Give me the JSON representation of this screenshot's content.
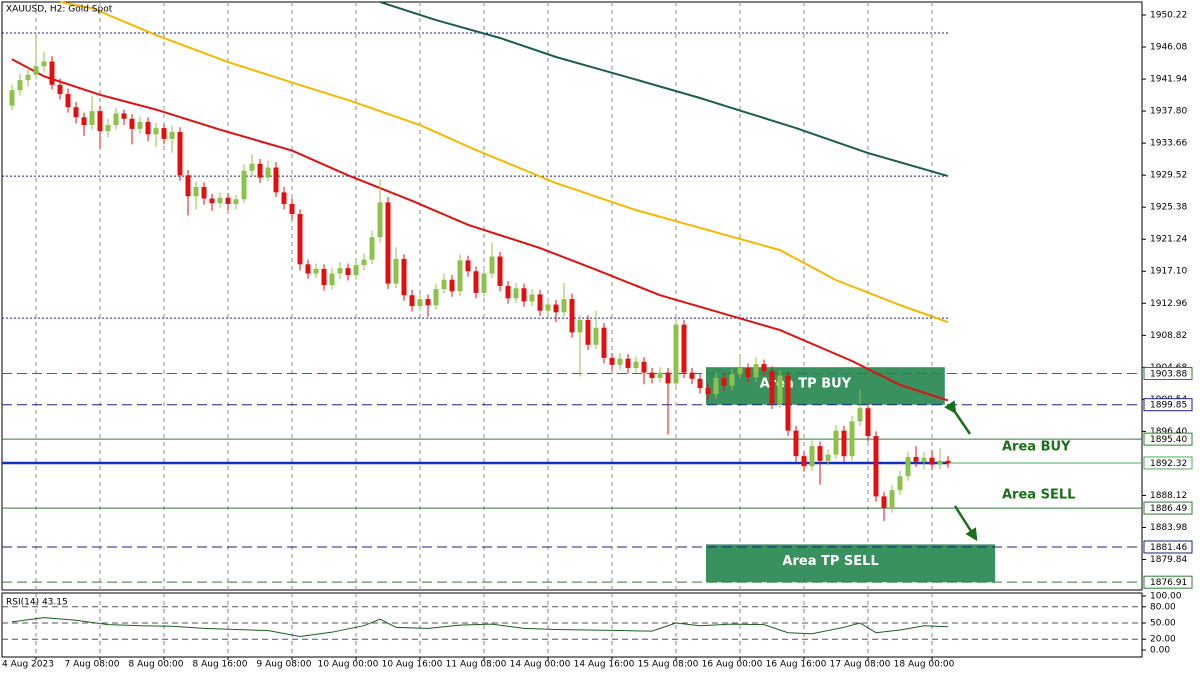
{
  "chart_data": {
    "type": "candlestick",
    "title": "XAUUSD, H2:  Gold Spot",
    "up_color": "#8bc34a",
    "down_color": "#e01010",
    "xlim": [
      -1.25,
      141.25
    ],
    "ylim": [
      1875.9,
      1951.9
    ],
    "grid": "x",
    "xticks": [
      {
        "value": 3,
        "label": "4 Aug 2023"
      },
      {
        "value": 11,
        "label": "7 Aug 08:00"
      },
      {
        "value": 19,
        "label": "8 Aug 00:00"
      },
      {
        "value": 27,
        "label": "8 Aug 16:00"
      },
      {
        "value": 35,
        "label": "9 Aug 08:00"
      },
      {
        "value": 43,
        "label": "10 Aug 00:00"
      },
      {
        "value": 51,
        "label": "10 Aug 16:00"
      },
      {
        "value": 59,
        "label": "11 Aug 08:00"
      },
      {
        "value": 67,
        "label": "14 Aug 00:00"
      },
      {
        "value": 75,
        "label": "14 Aug 16:00"
      },
      {
        "value": 83,
        "label": "15 Aug 08:00"
      },
      {
        "value": 91,
        "label": "16 Aug 00:00"
      },
      {
        "value": 99,
        "label": "16 Aug 16:00"
      },
      {
        "value": 107,
        "label": "17 Aug 08:00"
      },
      {
        "value": 115,
        "label": "18 Aug 00:00"
      }
    ],
    "yticks": [
      1950.22,
      1946.08,
      1941.94,
      {
        "value": 1937.8,
        "label": "1937.80"
      },
      1933.66,
      1929.52,
      1925.38,
      1921.24,
      {
        "value": 1917.1,
        "label": "1917.10"
      },
      1912.96,
      1908.82,
      1904.68,
      1900.54,
      {
        "value": 1896.4,
        "label": "1896.40"
      },
      1888.12,
      1883.98,
      1879.84
    ],
    "open": [
      1938.5,
      1940.5,
      1941.8,
      1942.5,
      1943.6,
      1944.2,
      1941.2,
      1940.0,
      1938.3,
      1937.0,
      1936.0,
      1937.8,
      1935.2,
      1936.0,
      1937.5,
      1936.8,
      1935.5,
      1936.4,
      1934.8,
      1935.6,
      1934.2,
      1935.1,
      1929.5,
      1926.8,
      1928.0,
      1926.5,
      1925.9,
      1926.6,
      1925.8,
      1926.4,
      1930.1,
      1931.0,
      1929.2,
      1930.5,
      1927.3,
      1925.8,
      1924.5,
      1918.0,
      1916.8,
      1917.4,
      1915.3,
      1916.8,
      1917.5,
      1916.6,
      1917.9,
      1918.6,
      1921.5,
      1926.0,
      1915.5,
      1918.7,
      1914.0,
      1912.6,
      1913.5,
      1912.7,
      1914.8,
      1916.0,
      1914.5,
      1918.5,
      1917.1,
      1914.3,
      1916.8,
      1919.0,
      1915.2,
      1913.6,
      1914.9,
      1913.2,
      1914.1,
      1912.0,
      1912.8,
      1911.8,
      1913.5,
      1909.2,
      1910.8,
      1907.6,
      1909.8,
      1905.9,
      1905.0,
      1905.8,
      1904.6,
      1905.4,
      1904.0,
      1903.3,
      1904.0,
      1902.6,
      1910.2,
      1904.0,
      1903.2,
      1902.0,
      1901.2,
      1903.3,
      1902.3,
      1903.8,
      1904.6,
      1903.4,
      1905.1,
      1904.2,
      1900.0,
      1903.6,
      1896.5,
      1893.2,
      1891.9,
      1894.5,
      1892.6,
      1893.4,
      1896.5,
      1893.2,
      1897.7,
      1899.4,
      1895.8,
      1888.0,
      1886.5,
      1888.8,
      1890.6,
      1893.1,
      1892.5,
      1893.0,
      1892.1,
      1892.6
    ],
    "high": [
      1941.2,
      1942.6,
      1943.4,
      1947.3,
      1945.5,
      1944.9,
      1942.0,
      1940.7,
      1939.0,
      1937.6,
      1939.8,
      1938.5,
      1936.8,
      1938.2,
      1938.0,
      1937.4,
      1937.1,
      1937.0,
      1936.3,
      1936.1,
      1935.9,
      1935.7,
      1930.2,
      1928.7,
      1928.6,
      1927.1,
      1927.3,
      1927.2,
      1927.0,
      1930.9,
      1932.2,
      1931.6,
      1931.4,
      1931.2,
      1928.0,
      1926.5,
      1925.1,
      1918.6,
      1918.1,
      1918.0,
      1917.5,
      1918.3,
      1918.1,
      1918.6,
      1919.4,
      1922.3,
      1929.0,
      1926.7,
      1920.2,
      1919.3,
      1914.7,
      1914.2,
      1914.1,
      1915.5,
      1916.8,
      1916.6,
      1919.3,
      1919.1,
      1917.7,
      1917.6,
      1920.8,
      1919.6,
      1915.8,
      1915.6,
      1915.5,
      1914.8,
      1914.7,
      1913.5,
      1913.4,
      1915.6,
      1914.2,
      1911.5,
      1911.4,
      1912.0,
      1910.4,
      1906.5,
      1906.5,
      1906.4,
      1906.1,
      1906.0,
      1904.6,
      1904.7,
      1904.6,
      1911.2,
      1910.8,
      1904.6,
      1903.8,
      1902.6,
      1904.0,
      1903.9,
      1904.5,
      1906.2,
      1905.2,
      1906.0,
      1905.7,
      1904.8,
      1904.3,
      1904.2,
      1897.1,
      1893.8,
      1895.2,
      1895.1,
      1894.1,
      1897.2,
      1897.1,
      1898.4,
      1901.8,
      1900.0,
      1896.4,
      1888.6,
      1889.5,
      1891.3,
      1893.8,
      1894.5,
      1893.7,
      1894.0,
      1894.2,
      1893.2
    ],
    "low": [
      1937.9,
      1939.8,
      1941.0,
      1941.9,
      1942.8,
      1940.6,
      1939.3,
      1937.6,
      1936.2,
      1934.6,
      1935.4,
      1933.0,
      1934.4,
      1935.4,
      1936.0,
      1933.5,
      1934.9,
      1933.9,
      1933.1,
      1933.5,
      1932.4,
      1928.8,
      1924.3,
      1925.1,
      1925.7,
      1924.9,
      1925.3,
      1925.0,
      1925.1,
      1925.9,
      1929.4,
      1928.5,
      1928.7,
      1926.7,
      1925.1,
      1923.8,
      1917.2,
      1916.1,
      1916.2,
      1914.6,
      1914.7,
      1916.1,
      1915.9,
      1916.0,
      1917.2,
      1918.0,
      1920.8,
      1914.8,
      1914.9,
      1913.3,
      1911.9,
      1912.0,
      1911.2,
      1912.1,
      1914.2,
      1913.8,
      1913.9,
      1916.4,
      1913.6,
      1913.8,
      1916.2,
      1914.5,
      1912.9,
      1913.0,
      1912.5,
      1912.6,
      1911.3,
      1911.4,
      1910.5,
      1911.2,
      1908.5,
      1903.5,
      1906.9,
      1907.0,
      1905.2,
      1904.3,
      1904.4,
      1903.9,
      1904.0,
      1902.5,
      1902.6,
      1902.7,
      1896.0,
      1902.0,
      1903.3,
      1902.5,
      1901.3,
      1900.5,
      1900.6,
      1901.6,
      1901.7,
      1903.2,
      1902.7,
      1902.8,
      1903.5,
      1899.3,
      1899.4,
      1895.8,
      1892.5,
      1891.2,
      1891.3,
      1889.5,
      1892.0,
      1892.8,
      1892.5,
      1892.6,
      1897.1,
      1895.1,
      1887.3,
      1884.8,
      1885.9,
      1888.2,
      1890.0,
      1891.8,
      1891.5,
      1891.4,
      1891.5,
      1891.7
    ],
    "close": [
      1940.5,
      1941.8,
      1942.5,
      1943.6,
      1944.2,
      1941.2,
      1940.0,
      1938.3,
      1937.0,
      1936.0,
      1937.8,
      1935.2,
      1936.0,
      1937.5,
      1936.8,
      1935.5,
      1936.4,
      1934.8,
      1935.6,
      1934.2,
      1935.1,
      1929.5,
      1926.8,
      1928.0,
      1926.5,
      1925.9,
      1926.6,
      1925.8,
      1926.4,
      1930.1,
      1931.0,
      1929.2,
      1930.5,
      1927.3,
      1925.8,
      1924.5,
      1918.0,
      1916.8,
      1917.4,
      1915.3,
      1916.8,
      1917.5,
      1916.6,
      1917.9,
      1918.6,
      1921.5,
      1926.0,
      1915.5,
      1918.7,
      1914.0,
      1912.6,
      1913.5,
      1912.7,
      1914.8,
      1916.0,
      1914.5,
      1918.5,
      1917.1,
      1914.3,
      1916.8,
      1919.0,
      1915.2,
      1913.6,
      1914.9,
      1913.2,
      1914.1,
      1912.0,
      1912.8,
      1911.8,
      1913.5,
      1909.2,
      1910.8,
      1907.6,
      1909.8,
      1905.9,
      1905.0,
      1905.8,
      1904.6,
      1905.4,
      1904.0,
      1903.3,
      1904.0,
      1902.6,
      1910.2,
      1904.0,
      1903.2,
      1902.0,
      1901.2,
      1903.3,
      1902.3,
      1903.8,
      1904.6,
      1903.4,
      1905.1,
      1904.2,
      1900.0,
      1903.6,
      1896.5,
      1893.2,
      1891.9,
      1894.5,
      1892.6,
      1893.4,
      1896.5,
      1893.2,
      1897.7,
      1899.4,
      1895.8,
      1888.0,
      1886.5,
      1888.8,
      1890.6,
      1893.1,
      1892.5,
      1893.0,
      1892.1,
      1892.6,
      1892.32
    ],
    "series": [
      {
        "color": "#1b5e50",
        "x": [
          46,
          53,
          61,
          68,
          76,
          86,
          92,
          98,
          107,
          117
        ],
        "values": [
          1951.9,
          1949.57,
          1947.25,
          1944.79,
          1942.46,
          1939.49,
          1937.55,
          1935.61,
          1932.38,
          1929.4
        ]
      },
      {
        "color": "#f5b800",
        "x": [
          6,
          10,
          18,
          27,
          36,
          42,
          51,
          58,
          68,
          78,
          87,
          96,
          103,
          111,
          117
        ],
        "values": [
          1951.9,
          1951.1,
          1947.63,
          1944.14,
          1941.17,
          1939.23,
          1935.99,
          1932.76,
          1928.49,
          1925.0,
          1922.42,
          1919.83,
          1915.95,
          1912.72,
          1910.52
        ]
      },
      {
        "color": "#e01010",
        "x": [
          0,
          4,
          11,
          18,
          26,
          35,
          42,
          50,
          57,
          66,
          73,
          81,
          88,
          96,
          105,
          111,
          117
        ],
        "values": [
          1944.5,
          1942.3,
          1939.9,
          1938.0,
          1935.4,
          1932.7,
          1929.5,
          1926.2,
          1923.1,
          1920.1,
          1917.3,
          1914.0,
          1911.9,
          1909.5,
          1905.5,
          1902.4,
          1900.4
        ]
      }
    ],
    "hlines": [
      1947.89,
      1929.4,
      1911.04
    ],
    "levels": [
      {
        "price": 1903.88,
        "label": "1903.88",
        "color": "#2e7d32",
        "style": "dashed"
      },
      {
        "price": 1899.85,
        "label": "1899.85",
        "color": "#1a237e",
        "style": "dashed"
      },
      {
        "price": 1895.4,
        "label": "1895.40",
        "color": "#2e7d32",
        "style": "solid"
      },
      {
        "price": 1892.32,
        "label": "1892.32",
        "color": "#1030c0",
        "style": "bid"
      },
      {
        "price": 1886.49,
        "label": "1886.49",
        "color": "#2e7d32",
        "style": "solid"
      },
      {
        "price": 1881.46,
        "label": "1881.46",
        "color": "#1a237e",
        "style": "dashed"
      },
      {
        "price": 1876.91,
        "label": "1876.91",
        "color": "#2e7d32",
        "style": "dashed"
      }
    ],
    "zones": [
      {
        "label": "Area TP BUY",
        "color": "#2e8b57",
        "x": [
          86.75,
          116.6
        ],
        "y": [
          1899.85,
          1904.7
        ]
      },
      {
        "label": "Area TP SELL",
        "color": "#2e8b57",
        "x": [
          86.75,
          122.9
        ],
        "y": [
          1876.9,
          1881.8
        ]
      }
    ],
    "annotations": [
      {
        "text": "Area BUY",
        "x": 123.75,
        "price": 1894.4
      },
      {
        "text": "Area SELL",
        "x": 123.75,
        "price": 1888.2
      }
    ],
    "rsi": {
      "label": "RSI(14) 43.15",
      "color": "#1b5e20",
      "ylim": [
        0,
        100
      ],
      "yticks": [
        {
          "value": 100,
          "label": "100.00"
        },
        {
          "value": 80,
          "label": "80.00"
        },
        {
          "value": 50,
          "label": "50.00"
        },
        {
          "value": 20,
          "label": "20.00"
        },
        {
          "value": 0,
          "label": "0.00"
        }
      ],
      "levels": [
        80,
        50,
        20
      ],
      "x": [
        0,
        4,
        8,
        12,
        16,
        20,
        24,
        28,
        32,
        36,
        40,
        44,
        46,
        48,
        52,
        56,
        60,
        64,
        68,
        72,
        76,
        80,
        83,
        86,
        90,
        94,
        97,
        100,
        104,
        106,
        108,
        111,
        114,
        117
      ],
      "values": [
        52,
        60,
        55,
        47,
        45,
        44,
        40,
        38,
        36,
        25,
        33,
        45,
        57,
        42,
        40,
        46,
        48,
        40,
        38,
        37,
        36,
        35,
        50,
        45,
        48,
        47,
        32,
        30,
        42,
        50,
        32,
        37,
        45,
        43.15
      ]
    }
  }
}
